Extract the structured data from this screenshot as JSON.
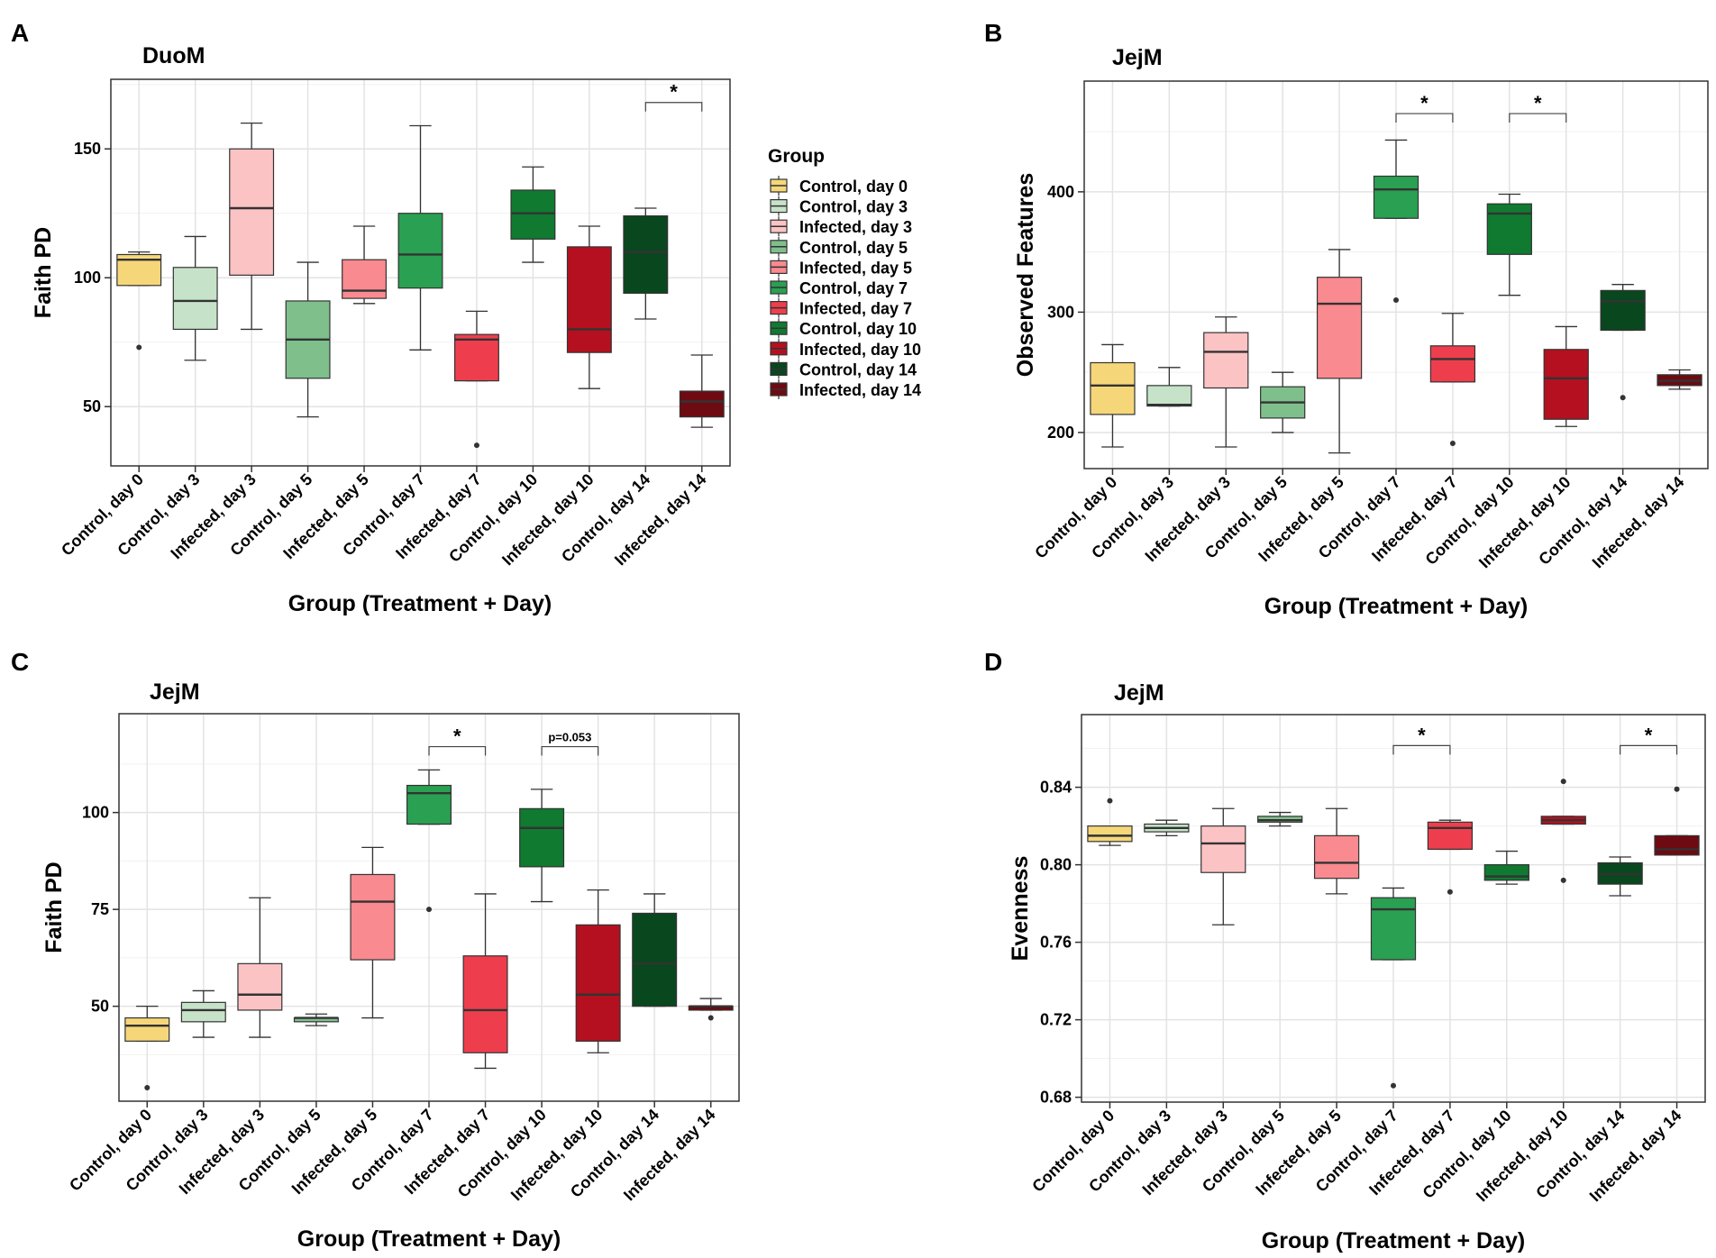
{
  "figure": {
    "legend": {
      "title": "Group",
      "items": [
        {
          "label": "Control, day 0",
          "color": "#F5D77A"
        },
        {
          "label": "Control, day 3",
          "color": "#C6E3C9"
        },
        {
          "label": "Infected, day 3",
          "color": "#FCC3C5"
        },
        {
          "label": "Control, day 5",
          "color": "#7FBF8C"
        },
        {
          "label": "Infected, day 5",
          "color": "#F98A8F"
        },
        {
          "label": "Control, day 7",
          "color": "#2AA052"
        },
        {
          "label": "Infected, day 7",
          "color": "#EE3E4D"
        },
        {
          "label": "Control, day 10",
          "color": "#0F7A30"
        },
        {
          "label": "Infected, day 10",
          "color": "#B5101F"
        },
        {
          "label": "Control, day 14",
          "color": "#09471E"
        },
        {
          "label": "Infected, day 14",
          "color": "#6E0A12"
        }
      ]
    }
  },
  "chart_data": [
    {
      "type": "box",
      "panel_label": "A",
      "title": "DuoM",
      "xlabel": "Group (Treatment + Day)",
      "ylabel": "Faith PD",
      "ylim": [
        27,
        177
      ],
      "yticks": [
        50,
        100,
        150
      ],
      "grid": true,
      "legend_position": "right",
      "categories": [
        "Control, day 0",
        "Control, day 3",
        "Infected, day 3",
        "Control, day 5",
        "Infected, day 5",
        "Control, day 7",
        "Infected, day 7",
        "Control, day 10",
        "Infected, day 10",
        "Control, day 14",
        "Infected, day 14"
      ],
      "boxes": [
        {
          "min": 97,
          "q1": 97,
          "median": 107,
          "q3": 109,
          "max": 110,
          "outliers": [
            73
          ]
        },
        {
          "min": 68,
          "q1": 80,
          "median": 91,
          "q3": 104,
          "max": 116,
          "outliers": []
        },
        {
          "min": 80,
          "q1": 101,
          "median": 127,
          "q3": 150,
          "max": 160,
          "outliers": []
        },
        {
          "min": 46,
          "q1": 61,
          "median": 76,
          "q3": 91,
          "max": 106,
          "outliers": []
        },
        {
          "min": 90,
          "q1": 92,
          "median": 95,
          "q3": 107,
          "max": 120,
          "outliers": []
        },
        {
          "min": 72,
          "q1": 96,
          "median": 109,
          "q3": 125,
          "max": 159,
          "outliers": []
        },
        {
          "min": 60,
          "q1": 60,
          "median": 76,
          "q3": 78,
          "max": 87,
          "outliers": [
            35
          ]
        },
        {
          "min": 106,
          "q1": 115,
          "median": 125,
          "q3": 134,
          "max": 143,
          "outliers": []
        },
        {
          "min": 57,
          "q1": 71,
          "median": 80,
          "q3": 112,
          "max": 120,
          "outliers": []
        },
        {
          "min": 84,
          "q1": 94,
          "median": 110,
          "q3": 124,
          "max": 127,
          "outliers": []
        },
        {
          "min": 42,
          "q1": 46,
          "median": 52,
          "q3": 56,
          "max": 70,
          "outliers": []
        }
      ],
      "significance": [
        {
          "from": 9,
          "to": 10,
          "y": 168,
          "label": "*"
        }
      ]
    },
    {
      "type": "box",
      "panel_label": "B",
      "title": "JejM",
      "xlabel": "Group (Treatment + Day)",
      "ylabel": "Observed Features",
      "ylim": [
        170,
        492
      ],
      "yticks": [
        200,
        300,
        400
      ],
      "grid": true,
      "categories": [
        "Control, day 0",
        "Control, day 3",
        "Infected, day 3",
        "Control, day 5",
        "Infected, day 5",
        "Control, day 7",
        "Infected, day 7",
        "Control, day 10",
        "Infected, day 10",
        "Control, day 14",
        "Infected, day 14"
      ],
      "boxes": [
        {
          "min": 188,
          "q1": 215,
          "median": 239,
          "q3": 258,
          "max": 273,
          "outliers": []
        },
        {
          "min": 222,
          "q1": 222,
          "median": 223,
          "q3": 239,
          "max": 254,
          "outliers": []
        },
        {
          "min": 188,
          "q1": 237,
          "median": 267,
          "q3": 283,
          "max": 296,
          "outliers": []
        },
        {
          "min": 200,
          "q1": 212,
          "median": 225,
          "q3": 238,
          "max": 250,
          "outliers": []
        },
        {
          "min": 183,
          "q1": 245,
          "median": 307,
          "q3": 329,
          "max": 352,
          "outliers": []
        },
        {
          "min": 378,
          "q1": 378,
          "median": 402,
          "q3": 413,
          "max": 443,
          "outliers": [
            310
          ]
        },
        {
          "min": 242,
          "q1": 242,
          "median": 261,
          "q3": 272,
          "max": 299,
          "outliers": [
            191
          ]
        },
        {
          "min": 314,
          "q1": 348,
          "median": 382,
          "q3": 390,
          "max": 398,
          "outliers": []
        },
        {
          "min": 205,
          "q1": 211,
          "median": 245,
          "q3": 269,
          "max": 288,
          "outliers": []
        },
        {
          "min": 285,
          "q1": 285,
          "median": 309,
          "q3": 318,
          "max": 323,
          "outliers": [
            229
          ]
        },
        {
          "min": 236,
          "q1": 239,
          "median": 243,
          "q3": 248,
          "max": 252,
          "outliers": []
        }
      ],
      "significance": [
        {
          "from": 5,
          "to": 6,
          "y": 465,
          "label": "*"
        },
        {
          "from": 7,
          "to": 8,
          "y": 465,
          "label": "*"
        }
      ]
    },
    {
      "type": "box",
      "panel_label": "C",
      "title": "JejM",
      "xlabel": "Group (Treatment + Day)",
      "ylabel": "Faith PD",
      "ylim": [
        25.5,
        125.5
      ],
      "yticks": [
        50,
        75,
        100
      ],
      "grid": true,
      "categories": [
        "Control, day 0",
        "Control, day 3",
        "Infected, day 3",
        "Control, day 5",
        "Infected, day 5",
        "Control, day 7",
        "Infected, day 7",
        "Control, day 10",
        "Infected, day 10",
        "Control, day 14",
        "Infected, day 14"
      ],
      "boxes": [
        {
          "min": 41,
          "q1": 41,
          "median": 45,
          "q3": 47,
          "max": 50,
          "outliers": [
            29
          ]
        },
        {
          "min": 42,
          "q1": 46,
          "median": 49,
          "q3": 51,
          "max": 54,
          "outliers": []
        },
        {
          "min": 42,
          "q1": 49,
          "median": 53,
          "q3": 61,
          "max": 78,
          "outliers": []
        },
        {
          "min": 45,
          "q1": 46,
          "median": 47,
          "q3": 47,
          "max": 48,
          "outliers": []
        },
        {
          "min": 47,
          "q1": 62,
          "median": 77,
          "q3": 84,
          "max": 91,
          "outliers": []
        },
        {
          "min": 97,
          "q1": 97,
          "median": 105,
          "q3": 107,
          "max": 111,
          "outliers": [
            75
          ]
        },
        {
          "min": 34,
          "q1": 38,
          "median": 49,
          "q3": 63,
          "max": 79,
          "outliers": []
        },
        {
          "min": 77,
          "q1": 86,
          "median": 96,
          "q3": 101,
          "max": 106,
          "outliers": []
        },
        {
          "min": 38,
          "q1": 41,
          "median": 53,
          "q3": 71,
          "max": 80,
          "outliers": []
        },
        {
          "min": 50,
          "q1": 50,
          "median": 61,
          "q3": 74,
          "max": 79,
          "outliers": []
        },
        {
          "min": 49,
          "q1": 49,
          "median": 50,
          "q3": 50,
          "max": 52,
          "outliers": [
            47
          ]
        }
      ],
      "significance": [
        {
          "from": 5,
          "to": 6,
          "y": 117,
          "label": "*"
        },
        {
          "from": 7,
          "to": 8,
          "y": 117,
          "label": "p=0.053"
        }
      ]
    },
    {
      "type": "box",
      "panel_label": "D",
      "title": "JejM",
      "xlabel": "Group (Treatment + Day)",
      "ylabel": "Evenness",
      "ylim": [
        0.6775,
        0.8775
      ],
      "yticks": [
        0.68,
        0.72,
        0.76,
        0.8,
        0.84
      ],
      "ytick_labels": [
        "0.68",
        "0.72",
        "0.76",
        "0.80",
        "0.84"
      ],
      "grid": true,
      "categories": [
        "Control, day 0",
        "Control, day 3",
        "Infected, day 3",
        "Control, day 5",
        "Infected, day 5",
        "Control, day 7",
        "Infected, day 7",
        "Control, day 10",
        "Infected, day 10",
        "Control, day 14",
        "Infected, day 14"
      ],
      "boxes": [
        {
          "min": 0.81,
          "q1": 0.812,
          "median": 0.815,
          "q3": 0.82,
          "max": 0.82,
          "outliers": [
            0.833
          ]
        },
        {
          "min": 0.815,
          "q1": 0.817,
          "median": 0.819,
          "q3": 0.821,
          "max": 0.823,
          "outliers": []
        },
        {
          "min": 0.769,
          "q1": 0.796,
          "median": 0.811,
          "q3": 0.82,
          "max": 0.829,
          "outliers": []
        },
        {
          "min": 0.82,
          "q1": 0.822,
          "median": 0.823,
          "q3": 0.825,
          "max": 0.827,
          "outliers": []
        },
        {
          "min": 0.785,
          "q1": 0.793,
          "median": 0.801,
          "q3": 0.815,
          "max": 0.829,
          "outliers": []
        },
        {
          "min": 0.751,
          "q1": 0.751,
          "median": 0.777,
          "q3": 0.783,
          "max": 0.788,
          "outliers": [
            0.686
          ]
        },
        {
          "min": 0.808,
          "q1": 0.808,
          "median": 0.819,
          "q3": 0.822,
          "max": 0.823,
          "outliers": [
            0.786
          ]
        },
        {
          "min": 0.79,
          "q1": 0.792,
          "median": 0.794,
          "q3": 0.8,
          "max": 0.807,
          "outliers": []
        },
        {
          "min": 0.821,
          "q1": 0.821,
          "median": 0.823,
          "q3": 0.825,
          "max": 0.825,
          "outliers": [
            0.792,
            0.843
          ]
        },
        {
          "min": 0.784,
          "q1": 0.79,
          "median": 0.795,
          "q3": 0.801,
          "max": 0.804,
          "outliers": []
        },
        {
          "min": 0.805,
          "q1": 0.805,
          "median": 0.808,
          "q3": 0.815,
          "max": 0.815,
          "outliers": [
            0.839
          ]
        }
      ],
      "significance": [
        {
          "from": 5,
          "to": 6,
          "y": 0.8615,
          "label": "*"
        },
        {
          "from": 9,
          "to": 10,
          "y": 0.8615,
          "label": "*"
        }
      ]
    }
  ]
}
